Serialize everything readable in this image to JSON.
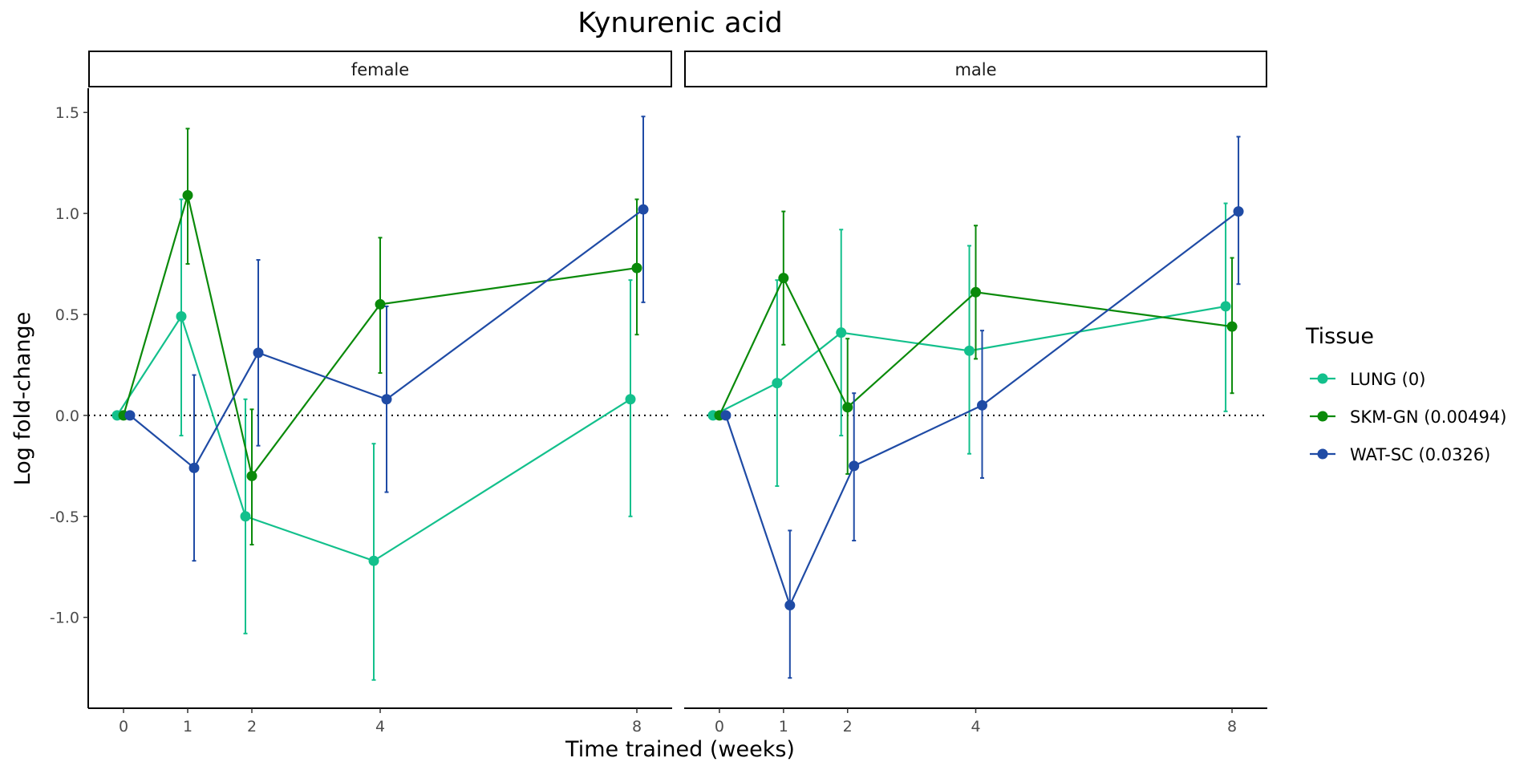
{
  "chart_data": {
    "type": "line",
    "title": "Kynurenic acid",
    "xlabel": "Time trained (weeks)",
    "ylabel": "Log fold-change",
    "x_ticks": [
      0,
      1,
      2,
      4,
      8
    ],
    "y_ticks": [
      -1.0,
      -0.5,
      0.0,
      0.5,
      1.0,
      1.5
    ],
    "y_tick_labels": [
      "-1.0",
      "-0.5",
      "0.0",
      "0.5",
      "1.0",
      "1.5"
    ],
    "xlim": [
      -0.55,
      8.55
    ],
    "ylim": [
      -1.45,
      1.62
    ],
    "reference_line": {
      "y": 0,
      "style": "dotted"
    },
    "grid": false,
    "legend": {
      "title": "Tissue",
      "placement": "right",
      "entries": [
        {
          "label": "LUNG (0)",
          "color": "#13C08C"
        },
        {
          "label": "SKM-GN (0.00494)",
          "color": "#0A8A0A"
        },
        {
          "label": "WAT-SC (0.0326)",
          "color": "#1F4BA5"
        }
      ]
    },
    "panels": [
      {
        "strip_label": "female",
        "series": [
          {
            "key": "LUNG",
            "color": "#13C08C",
            "dodge": -0.1,
            "points": [
              {
                "x": 0,
                "y": 0,
                "lo": 0,
                "hi": 0
              },
              {
                "x": 1,
                "y": 0.49,
                "lo": -0.1,
                "hi": 1.07
              },
              {
                "x": 2,
                "y": -0.5,
                "lo": -1.08,
                "hi": 0.08
              },
              {
                "x": 4,
                "y": -0.72,
                "lo": -1.31,
                "hi": -0.14
              },
              {
                "x": 8,
                "y": 0.08,
                "lo": -0.5,
                "hi": 0.67
              }
            ]
          },
          {
            "key": "SKM-GN",
            "color": "#0A8A0A",
            "dodge": 0,
            "points": [
              {
                "x": 0,
                "y": 0,
                "lo": 0,
                "hi": 0
              },
              {
                "x": 1,
                "y": 1.09,
                "lo": 0.75,
                "hi": 1.42
              },
              {
                "x": 2,
                "y": -0.3,
                "lo": -0.64,
                "hi": 0.03
              },
              {
                "x": 4,
                "y": 0.55,
                "lo": 0.21,
                "hi": 0.88
              },
              {
                "x": 8,
                "y": 0.73,
                "lo": 0.4,
                "hi": 1.07
              }
            ]
          },
          {
            "key": "WAT-SC",
            "color": "#1F4BA5",
            "dodge": 0.1,
            "points": [
              {
                "x": 0,
                "y": 0,
                "lo": 0,
                "hi": 0
              },
              {
                "x": 1,
                "y": -0.26,
                "lo": -0.72,
                "hi": 0.2
              },
              {
                "x": 2,
                "y": 0.31,
                "lo": -0.15,
                "hi": 0.77
              },
              {
                "x": 4,
                "y": 0.08,
                "lo": -0.38,
                "hi": 0.54
              },
              {
                "x": 8,
                "y": 1.02,
                "lo": 0.56,
                "hi": 1.48
              }
            ]
          }
        ]
      },
      {
        "strip_label": "male",
        "series": [
          {
            "key": "LUNG",
            "color": "#13C08C",
            "dodge": -0.1,
            "points": [
              {
                "x": 0,
                "y": 0,
                "lo": 0,
                "hi": 0
              },
              {
                "x": 1,
                "y": 0.16,
                "lo": -0.35,
                "hi": 0.67
              },
              {
                "x": 2,
                "y": 0.41,
                "lo": -0.1,
                "hi": 0.92
              },
              {
                "x": 4,
                "y": 0.32,
                "lo": -0.19,
                "hi": 0.84
              },
              {
                "x": 8,
                "y": 0.54,
                "lo": 0.02,
                "hi": 1.05
              }
            ]
          },
          {
            "key": "SKM-GN",
            "color": "#0A8A0A",
            "dodge": 0,
            "points": [
              {
                "x": 0,
                "y": 0,
                "lo": 0,
                "hi": 0
              },
              {
                "x": 1,
                "y": 0.68,
                "lo": 0.35,
                "hi": 1.01
              },
              {
                "x": 2,
                "y": 0.04,
                "lo": -0.29,
                "hi": 0.38
              },
              {
                "x": 4,
                "y": 0.61,
                "lo": 0.28,
                "hi": 0.94
              },
              {
                "x": 8,
                "y": 0.44,
                "lo": 0.11,
                "hi": 0.78
              }
            ]
          },
          {
            "key": "WAT-SC",
            "color": "#1F4BA5",
            "dodge": 0.1,
            "points": [
              {
                "x": 0,
                "y": 0,
                "lo": 0,
                "hi": 0
              },
              {
                "x": 1,
                "y": -0.94,
                "lo": -1.3,
                "hi": -0.57
              },
              {
                "x": 2,
                "y": -0.25,
                "lo": -0.62,
                "hi": 0.11
              },
              {
                "x": 4,
                "y": 0.05,
                "lo": -0.31,
                "hi": 0.42
              },
              {
                "x": 8,
                "y": 1.01,
                "lo": 0.65,
                "hi": 1.38
              }
            ]
          }
        ]
      }
    ]
  }
}
